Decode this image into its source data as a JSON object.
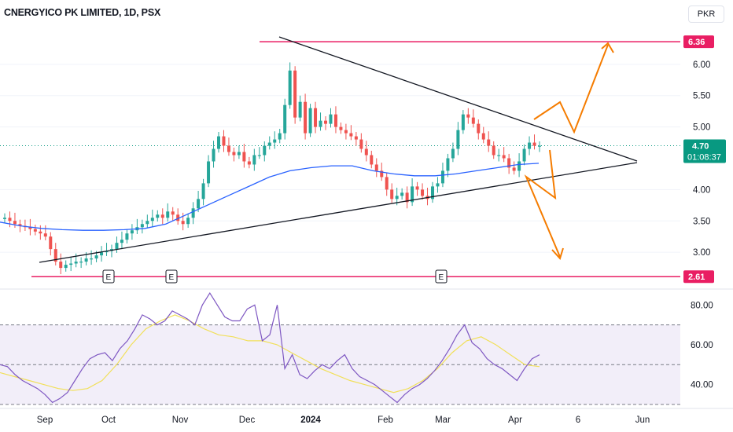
{
  "header": {
    "title": "CNERGYICO PK LIMITED, 1D, PSX",
    "currency": "PKR"
  },
  "price_tags": {
    "top_level": "6.36",
    "bottom_level": "2.61",
    "last_price": "4.70",
    "countdown": "01:08:37"
  },
  "earnings_markers": [
    "E",
    "E",
    "E"
  ],
  "colors": {
    "up": "#26a69a",
    "down": "#ef5350",
    "level_line": "#e91e63",
    "ma_line": "#2962ff",
    "rsi_line": "#7e57c2",
    "rsi_ma": "#f1e05a",
    "arrow": "#f57c00",
    "last_price": "#089981"
  },
  "chart_data": [
    {
      "type": "line",
      "panel": "price",
      "ylim": [
        2.45,
        6.65
      ],
      "y_ticks": [
        "6.00",
        "5.50",
        "5.00",
        "4.00",
        "3.50",
        "3.00"
      ],
      "x_ticks": [
        "Sep",
        "Oct",
        "Nov",
        "Dec",
        "2024",
        "Feb",
        "Mar",
        "Apr",
        "6",
        "Jun"
      ],
      "series": [
        {
          "values": [
            3.55,
            3.5,
            3.45,
            3.42,
            3.4,
            3.37,
            3.33,
            3.3,
            3.25,
            3.05,
            2.85,
            2.75,
            2.8,
            2.82,
            2.85,
            2.85,
            2.9,
            2.9,
            2.95,
            3.0,
            3.02,
            3.05,
            3.15,
            3.2,
            3.3,
            3.35,
            3.4,
            3.45,
            3.5,
            3.55,
            3.6,
            3.55,
            3.65,
            3.6,
            3.5,
            3.45,
            3.55,
            3.7,
            3.85,
            4.1,
            4.45,
            4.65,
            4.85,
            4.7,
            4.6,
            4.55,
            4.6,
            4.45,
            4.4,
            4.55,
            4.55,
            4.7,
            4.75,
            4.8,
            4.9,
            5.35,
            5.9,
            5.15,
            5.4,
            4.9,
            5.3,
            5.0,
            5.1,
            5.05,
            5.2,
            5.0,
            4.95,
            4.9,
            4.85,
            4.8,
            4.65,
            4.55,
            4.4,
            4.3,
            4.2,
            4.0,
            3.85,
            3.9,
            3.95,
            3.8,
            4.05,
            4.0,
            3.9,
            3.85,
            4.05,
            4.1,
            4.3,
            4.5,
            4.65,
            4.95,
            5.2,
            5.15,
            5.05,
            4.9,
            4.8,
            4.7,
            4.55,
            4.55,
            4.5,
            4.35,
            4.3,
            4.45,
            4.65,
            4.75,
            4.7,
            4.7
          ]
        },
        {
          "values": [
            3.48,
            3.42,
            3.38,
            3.36,
            3.35,
            3.35,
            3.36,
            3.38,
            3.45,
            3.6,
            3.75,
            3.9,
            4.05,
            4.2,
            4.3,
            4.35,
            4.38,
            4.38,
            4.3,
            4.25,
            4.22,
            4.22,
            4.25,
            4.3,
            4.35,
            4.4,
            4.42
          ]
        }
      ]
    },
    {
      "type": "line",
      "panel": "rsi",
      "ylim": [
        28,
        88
      ],
      "y_ticks": [
        "80.00",
        "60.00",
        "40.00"
      ],
      "series": [
        {
          "values": [
            50,
            49,
            45,
            42,
            40,
            38,
            35,
            31,
            33,
            36,
            42,
            48,
            53,
            55,
            56,
            52,
            58,
            62,
            68,
            75,
            73,
            70,
            72,
            77,
            75,
            73,
            70,
            80,
            86,
            80,
            74,
            72,
            72,
            78,
            80,
            62,
            65,
            80,
            48,
            55,
            45,
            43,
            47,
            50,
            48,
            52,
            55,
            48,
            44,
            42,
            40,
            37,
            34,
            31,
            35,
            38,
            40,
            43,
            47,
            52,
            58,
            65,
            70,
            61,
            58,
            53,
            50,
            48,
            45,
            42,
            48,
            53,
            55
          ]
        },
        {
          "values": [
            46,
            44,
            42,
            40,
            38,
            37,
            38,
            42,
            50,
            60,
            68,
            72,
            75,
            72,
            68,
            65,
            64,
            62,
            62,
            60,
            56,
            52,
            48,
            45,
            42,
            40,
            38,
            36,
            38,
            42,
            48,
            56,
            62,
            64,
            60,
            55,
            50,
            49
          ]
        }
      ]
    }
  ]
}
